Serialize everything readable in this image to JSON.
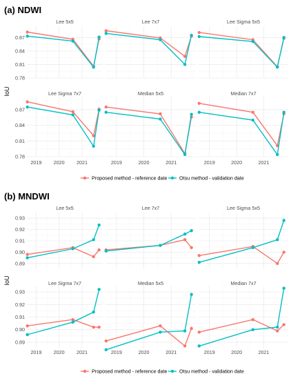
{
  "colors": {
    "series1": "#f8766d",
    "series2": "#00bfc4",
    "panel_bg": "#ffffff",
    "grid_major": "#ebebeb",
    "grid_minor": "#f5f5f5",
    "text": "#4d4d4d",
    "title": "#000000"
  },
  "legend": {
    "placement": "bottom",
    "entries": [
      "Proposed method - reference date",
      "Otsu method - validation date"
    ]
  },
  "chart_data": [
    {
      "type": "line",
      "title": "(a) NDWI",
      "ylabel": "IoU",
      "xlabel": "",
      "ylim": [
        0.78,
        0.895
      ],
      "yticks": [
        0.78,
        0.81,
        0.84,
        0.87
      ],
      "ytick_labels": [
        "0.78",
        "0.81",
        "0.84",
        "0.87"
      ],
      "xlim": [
        2018.6,
        2021.9
      ],
      "xticks": [
        2019,
        2020,
        2021
      ],
      "xtick_labels": [
        "2019",
        "2020",
        "2021"
      ],
      "grid": true,
      "facets": [
        {
          "title": "Lee 5x5",
          "series": [
            {
              "name": "Proposed method - reference date",
              "x": [
                2018.62,
                2020.6,
                2021.5,
                2021.74
              ],
              "y": [
                0.882,
                0.866,
                0.806,
                0.867
              ]
            },
            {
              "name": "Otsu method - validation date",
              "x": [
                2018.62,
                2020.6,
                2021.5,
                2021.74
              ],
              "y": [
                0.873,
                0.862,
                0.804,
                0.871
              ]
            }
          ]
        },
        {
          "title": "Lee 7x7",
          "series": [
            {
              "name": "Proposed method - reference date",
              "x": [
                2018.62,
                2020.6,
                2021.5,
                2021.74
              ],
              "y": [
                0.885,
                0.869,
                0.828,
                0.873
              ]
            },
            {
              "name": "Otsu method - validation date",
              "x": [
                2018.62,
                2020.6,
                2021.5,
                2021.74
              ],
              "y": [
                0.879,
                0.865,
                0.81,
                0.875
              ]
            }
          ]
        },
        {
          "title": "Lee Sigma 5x5",
          "series": [
            {
              "name": "Proposed method - reference date",
              "x": [
                2018.62,
                2020.6,
                2021.5,
                2021.74
              ],
              "y": [
                0.881,
                0.865,
                0.805,
                0.868
              ]
            },
            {
              "name": "Otsu method - validation date",
              "x": [
                2018.62,
                2020.6,
                2021.5,
                2021.74
              ],
              "y": [
                0.872,
                0.861,
                0.804,
                0.87
              ]
            }
          ]
        },
        {
          "title": "Lee Sigma 7x7",
          "series": [
            {
              "name": "Proposed method - reference date",
              "x": [
                2018.62,
                2020.6,
                2021.5,
                2021.74
              ],
              "y": [
                0.885,
                0.866,
                0.82,
                0.871
              ]
            },
            {
              "name": "Otsu method - validation date",
              "x": [
                2018.62,
                2020.6,
                2021.5,
                2021.74
              ],
              "y": [
                0.875,
                0.86,
                0.8,
                0.869
              ]
            }
          ]
        },
        {
          "title": "Median 5x5",
          "series": [
            {
              "name": "Proposed method - reference date",
              "x": [
                2018.62,
                2020.6,
                2021.5,
                2021.74
              ],
              "y": [
                0.875,
                0.862,
                0.786,
                0.856
              ]
            },
            {
              "name": "Otsu method - validation date",
              "x": [
                2018.62,
                2020.6,
                2021.5,
                2021.74
              ],
              "y": [
                0.865,
                0.852,
                0.784,
                0.861
              ]
            }
          ]
        },
        {
          "title": "Median 7x7",
          "series": [
            {
              "name": "Proposed method - reference date",
              "x": [
                2018.62,
                2020.6,
                2021.5,
                2021.74
              ],
              "y": [
                0.882,
                0.865,
                0.801,
                0.862
              ]
            },
            {
              "name": "Otsu method - validation date",
              "x": [
                2018.62,
                2020.6,
                2021.5,
                2021.74
              ],
              "y": [
                0.865,
                0.85,
                0.784,
                0.865
              ]
            }
          ]
        }
      ]
    },
    {
      "type": "line",
      "title": "(b) MNDWI",
      "ylabel": "IoU",
      "xlabel": "",
      "ylim": [
        0.885,
        0.935
      ],
      "yticks": [
        0.89,
        0.9,
        0.91,
        0.92,
        0.93
      ],
      "ytick_labels": [
        "0.89",
        "0.90",
        "0.91",
        "0.92",
        "0.93"
      ],
      "xlim": [
        2018.6,
        2021.9
      ],
      "xticks": [
        2019,
        2020,
        2021
      ],
      "xtick_labels": [
        "2019",
        "2020",
        "2021"
      ],
      "grid": true,
      "facets": [
        {
          "title": "Lee 5x5",
          "series": [
            {
              "name": "Proposed method - reference date",
              "x": [
                2018.62,
                2020.6,
                2021.5,
                2021.74
              ],
              "y": [
                0.898,
                0.904,
                0.896,
                0.902
              ]
            },
            {
              "name": "Otsu method - validation date",
              "x": [
                2018.62,
                2020.6,
                2021.5,
                2021.74
              ],
              "y": [
                0.895,
                0.903,
                0.911,
                0.924
              ]
            }
          ]
        },
        {
          "title": "Lee 7x7",
          "series": [
            {
              "name": "Proposed method - reference date",
              "x": [
                2018.62,
                2020.6,
                2021.5,
                2021.74
              ],
              "y": [
                0.902,
                0.906,
                0.911,
                0.904
              ]
            },
            {
              "name": "Otsu method - validation date",
              "x": [
                2018.62,
                2020.6,
                2021.5,
                2021.74
              ],
              "y": [
                0.901,
                0.906,
                0.916,
                0.919
              ]
            }
          ]
        },
        {
          "title": "Lee Sigma 5x5",
          "series": [
            {
              "name": "Proposed method - reference date",
              "x": [
                2018.62,
                2020.6,
                2021.5,
                2021.74
              ],
              "y": [
                0.897,
                0.905,
                0.89,
                0.9
              ]
            },
            {
              "name": "Otsu method - validation date",
              "x": [
                2018.62,
                2020.6,
                2021.5,
                2021.74
              ],
              "y": [
                0.891,
                0.904,
                0.911,
                0.928
              ]
            }
          ]
        },
        {
          "title": "Lee Sigma 7x7",
          "series": [
            {
              "name": "Proposed method - reference date",
              "x": [
                2018.62,
                2020.6,
                2021.5,
                2021.74
              ],
              "y": [
                0.903,
                0.908,
                0.902,
                0.902
              ]
            },
            {
              "name": "Otsu method - validation date",
              "x": [
                2018.62,
                2020.6,
                2021.5,
                2021.74
              ],
              "y": [
                0.896,
                0.906,
                0.914,
                0.932
              ]
            }
          ]
        },
        {
          "title": "Median 5x5",
          "series": [
            {
              "name": "Proposed method - reference date",
              "x": [
                2018.62,
                2020.6,
                2021.5,
                2021.74
              ],
              "y": [
                0.891,
                0.903,
                0.887,
                0.901
              ]
            },
            {
              "name": "Otsu method - validation date",
              "x": [
                2018.62,
                2020.6,
                2021.5,
                2021.74
              ],
              "y": [
                0.884,
                0.898,
                0.899,
                0.928
              ]
            }
          ]
        },
        {
          "title": "Median 7x7",
          "series": [
            {
              "name": "Proposed method - reference date",
              "x": [
                2018.62,
                2020.6,
                2021.5,
                2021.74
              ],
              "y": [
                0.898,
                0.908,
                0.899,
                0.904
              ]
            },
            {
              "name": "Otsu method - validation date",
              "x": [
                2018.62,
                2020.6,
                2021.5,
                2021.74
              ],
              "y": [
                0.887,
                0.9,
                0.902,
                0.933
              ]
            }
          ]
        }
      ]
    }
  ]
}
